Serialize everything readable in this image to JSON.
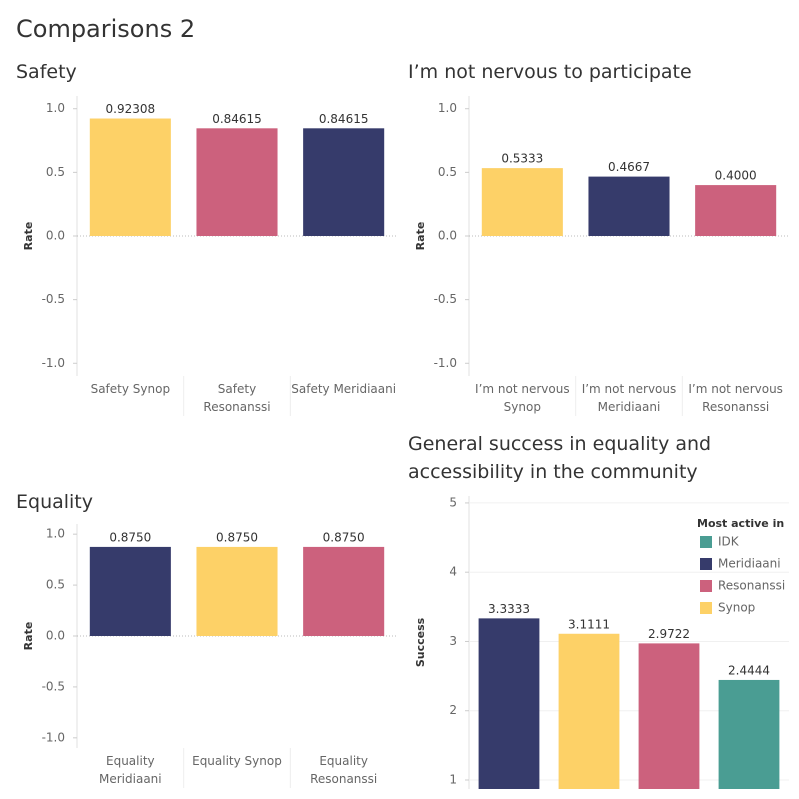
{
  "title": "Comparisons 2",
  "chart_data": [
    {
      "type": "bar",
      "title": "Safety",
      "ylabel": "Rate",
      "categories": [
        "Safety Synop",
        "Safety Resonanssi",
        "Safety Meridiaani"
      ],
      "values": [
        0.92308,
        0.84615,
        0.84615
      ],
      "colors": [
        "#fdd167",
        "#cc617d",
        "#363b6b"
      ],
      "ylim": [
        -1.1,
        1.1
      ],
      "yticks": [
        {
          "value": 1,
          "label": "1.0"
        },
        0.5,
        {
          "value": 0,
          "label": "0.0"
        },
        -0.5,
        {
          "value": -1,
          "label": "-1.0"
        }
      ],
      "grid": false
    },
    {
      "type": "bar",
      "title": "I’m not nervous to participate",
      "ylabel": "Rate",
      "categories": [
        "I’m not nervous Synop",
        "I’m not nervous Meridiaani",
        "I’m not nervous Resonanssi"
      ],
      "values": [
        0.5333,
        0.4667,
        0.4
      ],
      "value_labels": [
        "0.5333",
        "0.4667",
        "0.4000"
      ],
      "colors": [
        "#fdd167",
        "#363b6b",
        "#cc617d"
      ],
      "ylim": [
        -1.1,
        1.1
      ],
      "yticks": [
        {
          "value": 1,
          "label": "1.0"
        },
        0.5,
        {
          "value": 0,
          "label": "0.0"
        },
        -0.5,
        {
          "value": -1,
          "label": "-1.0"
        }
      ],
      "grid": false
    },
    {
      "type": "bar",
      "title": "Equality",
      "ylabel": "Rate",
      "categories": [
        "Equality Meridiaani",
        "Equality Synop",
        "Equality Resonanssi"
      ],
      "values": [
        0.875,
        0.875,
        0.875
      ],
      "value_labels": [
        "0.8750",
        "0.8750",
        "0.8750"
      ],
      "colors": [
        "#363b6b",
        "#fdd167",
        "#cc617d"
      ],
      "ylim": [
        -1.1,
        1.1
      ],
      "yticks": [
        {
          "value": 1,
          "label": "1.0"
        },
        0.5,
        {
          "value": 0,
          "label": "0.0"
        },
        -0.5,
        {
          "value": -1,
          "label": "-1.0"
        }
      ],
      "grid": false
    },
    {
      "type": "bar",
      "title": "General success in equality and accessibility in the community",
      "ylabel": "Success",
      "categories": [
        null,
        null,
        null,
        null
      ],
      "values": [
        3.3333,
        3.1111,
        2.9722,
        2.4444
      ],
      "colors": [
        "#363b6b",
        "#fdd167",
        "#cc617d",
        "#4a9d93"
      ],
      "ylim": [
        0.87,
        5.1
      ],
      "yticks": [
        5,
        4,
        3,
        2,
        1
      ],
      "grid": true,
      "legend": {
        "title": "Most active in",
        "position": "top-right",
        "items": [
          {
            "name": "IDK",
            "color": "#4a9d93"
          },
          {
            "name": "Meridiaani",
            "color": "#363b6b"
          },
          {
            "name": "Resonanssi",
            "color": "#cc617d"
          },
          {
            "name": "Synop",
            "color": "#fdd167"
          }
        ]
      }
    }
  ]
}
